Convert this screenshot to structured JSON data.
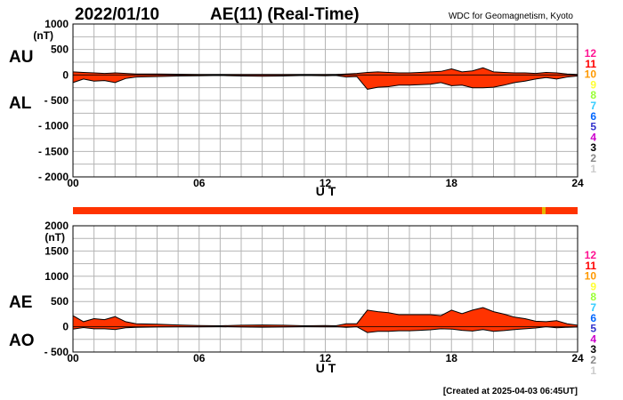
{
  "header": {
    "date": "2022/01/10",
    "title": "AE(11) (Real-Time)",
    "source": "WDC for Geomagnetism, Kyoto"
  },
  "footer": {
    "created": "[Created at 2025-04-03 06:45UT]"
  },
  "colors": {
    "fill": "#ff3300",
    "outline": "#000000",
    "station_bar": "#ff3300",
    "station_bar_marker": "#e6b800",
    "grid": "#b4b4b4"
  },
  "legend_scale": {
    "labels": [
      "12",
      "11",
      "10",
      "9",
      "8",
      "7",
      "6",
      "5",
      "4",
      "3",
      "2",
      "1"
    ],
    "colors": [
      "#ff1493",
      "#ff0000",
      "#ff9900",
      "#ffff33",
      "#99ff33",
      "#33ccff",
      "#0066ff",
      "#3333cc",
      "#cc00cc",
      "#000000",
      "#888888",
      "#cccccc"
    ]
  },
  "chart_data": [
    {
      "type": "area",
      "panel": "AU / AL",
      "labels_left": [
        "AU",
        "AL"
      ],
      "unit": "(nT)",
      "xlabel": "U T",
      "xticks": [
        "00",
        "06",
        "12",
        "18",
        "24"
      ],
      "xlim": [
        0,
        24
      ],
      "ylim": [
        -2000,
        1000
      ],
      "yticks": [
        "1000",
        "500",
        "0",
        "- 500",
        "- 1000",
        "- 1500",
        "- 2000"
      ],
      "grid": true,
      "series": [
        {
          "name": "AU",
          "x": [
            0,
            0.5,
            1,
            1.5,
            2,
            2.5,
            3,
            4,
            5,
            6,
            7,
            8,
            9,
            10,
            11,
            12,
            12.5,
            13,
            13.5,
            14,
            14.5,
            15,
            15.5,
            16,
            16.5,
            17,
            17.5,
            18,
            18.5,
            19,
            19.5,
            20,
            20.5,
            21,
            21.5,
            22,
            22.5,
            23,
            23.5,
            24
          ],
          "values": [
            60,
            50,
            40,
            30,
            40,
            30,
            20,
            20,
            15,
            10,
            10,
            10,
            10,
            10,
            10,
            10,
            10,
            20,
            30,
            50,
            60,
            50,
            40,
            40,
            50,
            60,
            70,
            120,
            60,
            80,
            140,
            60,
            50,
            40,
            40,
            30,
            50,
            40,
            20,
            10
          ]
        },
        {
          "name": "AL",
          "x": [
            0,
            0.5,
            1,
            1.5,
            2,
            2.5,
            3,
            4,
            5,
            6,
            7,
            8,
            9,
            10,
            11,
            12,
            12.5,
            13,
            13.5,
            14,
            14.5,
            15,
            15.5,
            16,
            16.5,
            17,
            17.5,
            18,
            18.5,
            19,
            19.5,
            20,
            20.5,
            21,
            21.5,
            22,
            22.5,
            23,
            23.5,
            24
          ],
          "values": [
            -150,
            -80,
            -120,
            -110,
            -150,
            -70,
            -40,
            -30,
            -20,
            -15,
            -10,
            -20,
            -25,
            -20,
            -10,
            -15,
            -10,
            -40,
            -30,
            -280,
            -240,
            -230,
            -200,
            -200,
            -190,
            -180,
            -150,
            -210,
            -200,
            -250,
            -250,
            -240,
            -200,
            -150,
            -120,
            -80,
            -50,
            -80,
            -40,
            -20
          ]
        }
      ]
    },
    {
      "type": "area",
      "panel": "AE / AO",
      "labels_left": [
        "AE",
        "AO"
      ],
      "unit": "(nT)",
      "xlabel": "U T",
      "xticks": [
        "00",
        "06",
        "12",
        "18",
        "24"
      ],
      "xlim": [
        0,
        24
      ],
      "ylim": [
        -500,
        2000
      ],
      "yticks": [
        "2000",
        "1500",
        "1000",
        "500",
        "0",
        "- 500"
      ],
      "grid": true,
      "series": [
        {
          "name": "AE",
          "x": [
            0,
            0.5,
            1,
            1.5,
            2,
            2.5,
            3,
            4,
            5,
            6,
            7,
            8,
            9,
            10,
            11,
            12,
            12.5,
            13,
            13.5,
            14,
            14.5,
            15,
            15.5,
            16,
            16.5,
            17,
            17.5,
            18,
            18.5,
            19,
            19.5,
            20,
            20.5,
            21,
            21.5,
            22,
            22.5,
            23,
            23.5,
            24
          ],
          "values": [
            220,
            100,
            160,
            140,
            200,
            100,
            60,
            50,
            35,
            25,
            20,
            30,
            35,
            30,
            20,
            25,
            20,
            60,
            60,
            330,
            300,
            280,
            240,
            240,
            240,
            240,
            220,
            330,
            260,
            330,
            380,
            300,
            250,
            190,
            160,
            110,
            100,
            120,
            60,
            30
          ]
        },
        {
          "name": "AO",
          "x": [
            0,
            0.5,
            1,
            1.5,
            2,
            2.5,
            3,
            4,
            5,
            6,
            7,
            8,
            9,
            10,
            11,
            12,
            12.5,
            13,
            13.5,
            14,
            14.5,
            15,
            15.5,
            16,
            16.5,
            17,
            17.5,
            18,
            18.5,
            19,
            19.5,
            20,
            20.5,
            21,
            21.5,
            22,
            22.5,
            23,
            23.5,
            24
          ],
          "values": [
            -45,
            -15,
            -40,
            -40,
            -55,
            -20,
            -10,
            -5,
            -3,
            -3,
            0,
            -5,
            -8,
            -5,
            0,
            -3,
            0,
            -10,
            0,
            -115,
            -90,
            -90,
            -80,
            -80,
            -70,
            -60,
            -40,
            -45,
            -70,
            -85,
            -55,
            -90,
            -75,
            -55,
            -40,
            -25,
            0,
            -20,
            -10,
            -5
          ]
        }
      ]
    }
  ]
}
